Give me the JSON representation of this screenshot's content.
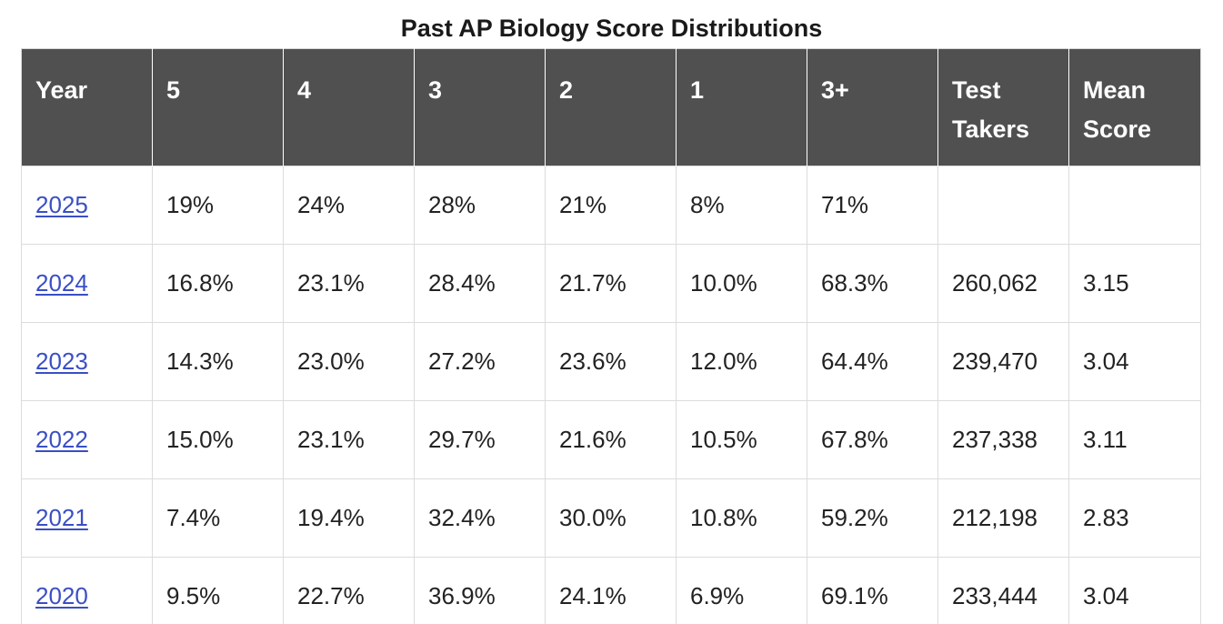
{
  "title": "Past AP Biology Score Distributions",
  "headers": [
    "Year",
    "5",
    "4",
    "3",
    "2",
    "1",
    "3+",
    "Test Takers",
    "Mean Score"
  ],
  "rows": [
    {
      "year": "2025",
      "s5": "19%",
      "s4": "24%",
      "s3": "28%",
      "s2": "21%",
      "s1": "8%",
      "s3plus": "71%",
      "takers": "",
      "mean": ""
    },
    {
      "year": "2024",
      "s5": "16.8%",
      "s4": "23.1%",
      "s3": "28.4%",
      "s2": "21.7%",
      "s1": "10.0%",
      "s3plus": "68.3%",
      "takers": "260,062",
      "mean": "3.15"
    },
    {
      "year": "2023",
      "s5": "14.3%",
      "s4": "23.0%",
      "s3": "27.2%",
      "s2": "23.6%",
      "s1": "12.0%",
      "s3plus": "64.4%",
      "takers": "239,470",
      "mean": "3.04"
    },
    {
      "year": "2022",
      "s5": "15.0%",
      "s4": "23.1%",
      "s3": "29.7%",
      "s2": "21.6%",
      "s1": "10.5%",
      "s3plus": "67.8%",
      "takers": "237,338",
      "mean": "3.11"
    },
    {
      "year": "2021",
      "s5": "7.4%",
      "s4": "19.4%",
      "s3": "32.4%",
      "s2": "30.0%",
      "s1": "10.8%",
      "s3plus": "59.2%",
      "takers": "212,198",
      "mean": "2.83"
    },
    {
      "year": "2020",
      "s5": "9.5%",
      "s4": "22.7%",
      "s3": "36.9%",
      "s2": "24.1%",
      "s1": "6.9%",
      "s3plus": "69.1%",
      "takers": "233,444",
      "mean": "3.04"
    }
  ],
  "colors": {
    "header_bg": "#505050",
    "header_text": "#ffffff",
    "link": "#3a4fc4",
    "border": "#dcdcdc"
  }
}
